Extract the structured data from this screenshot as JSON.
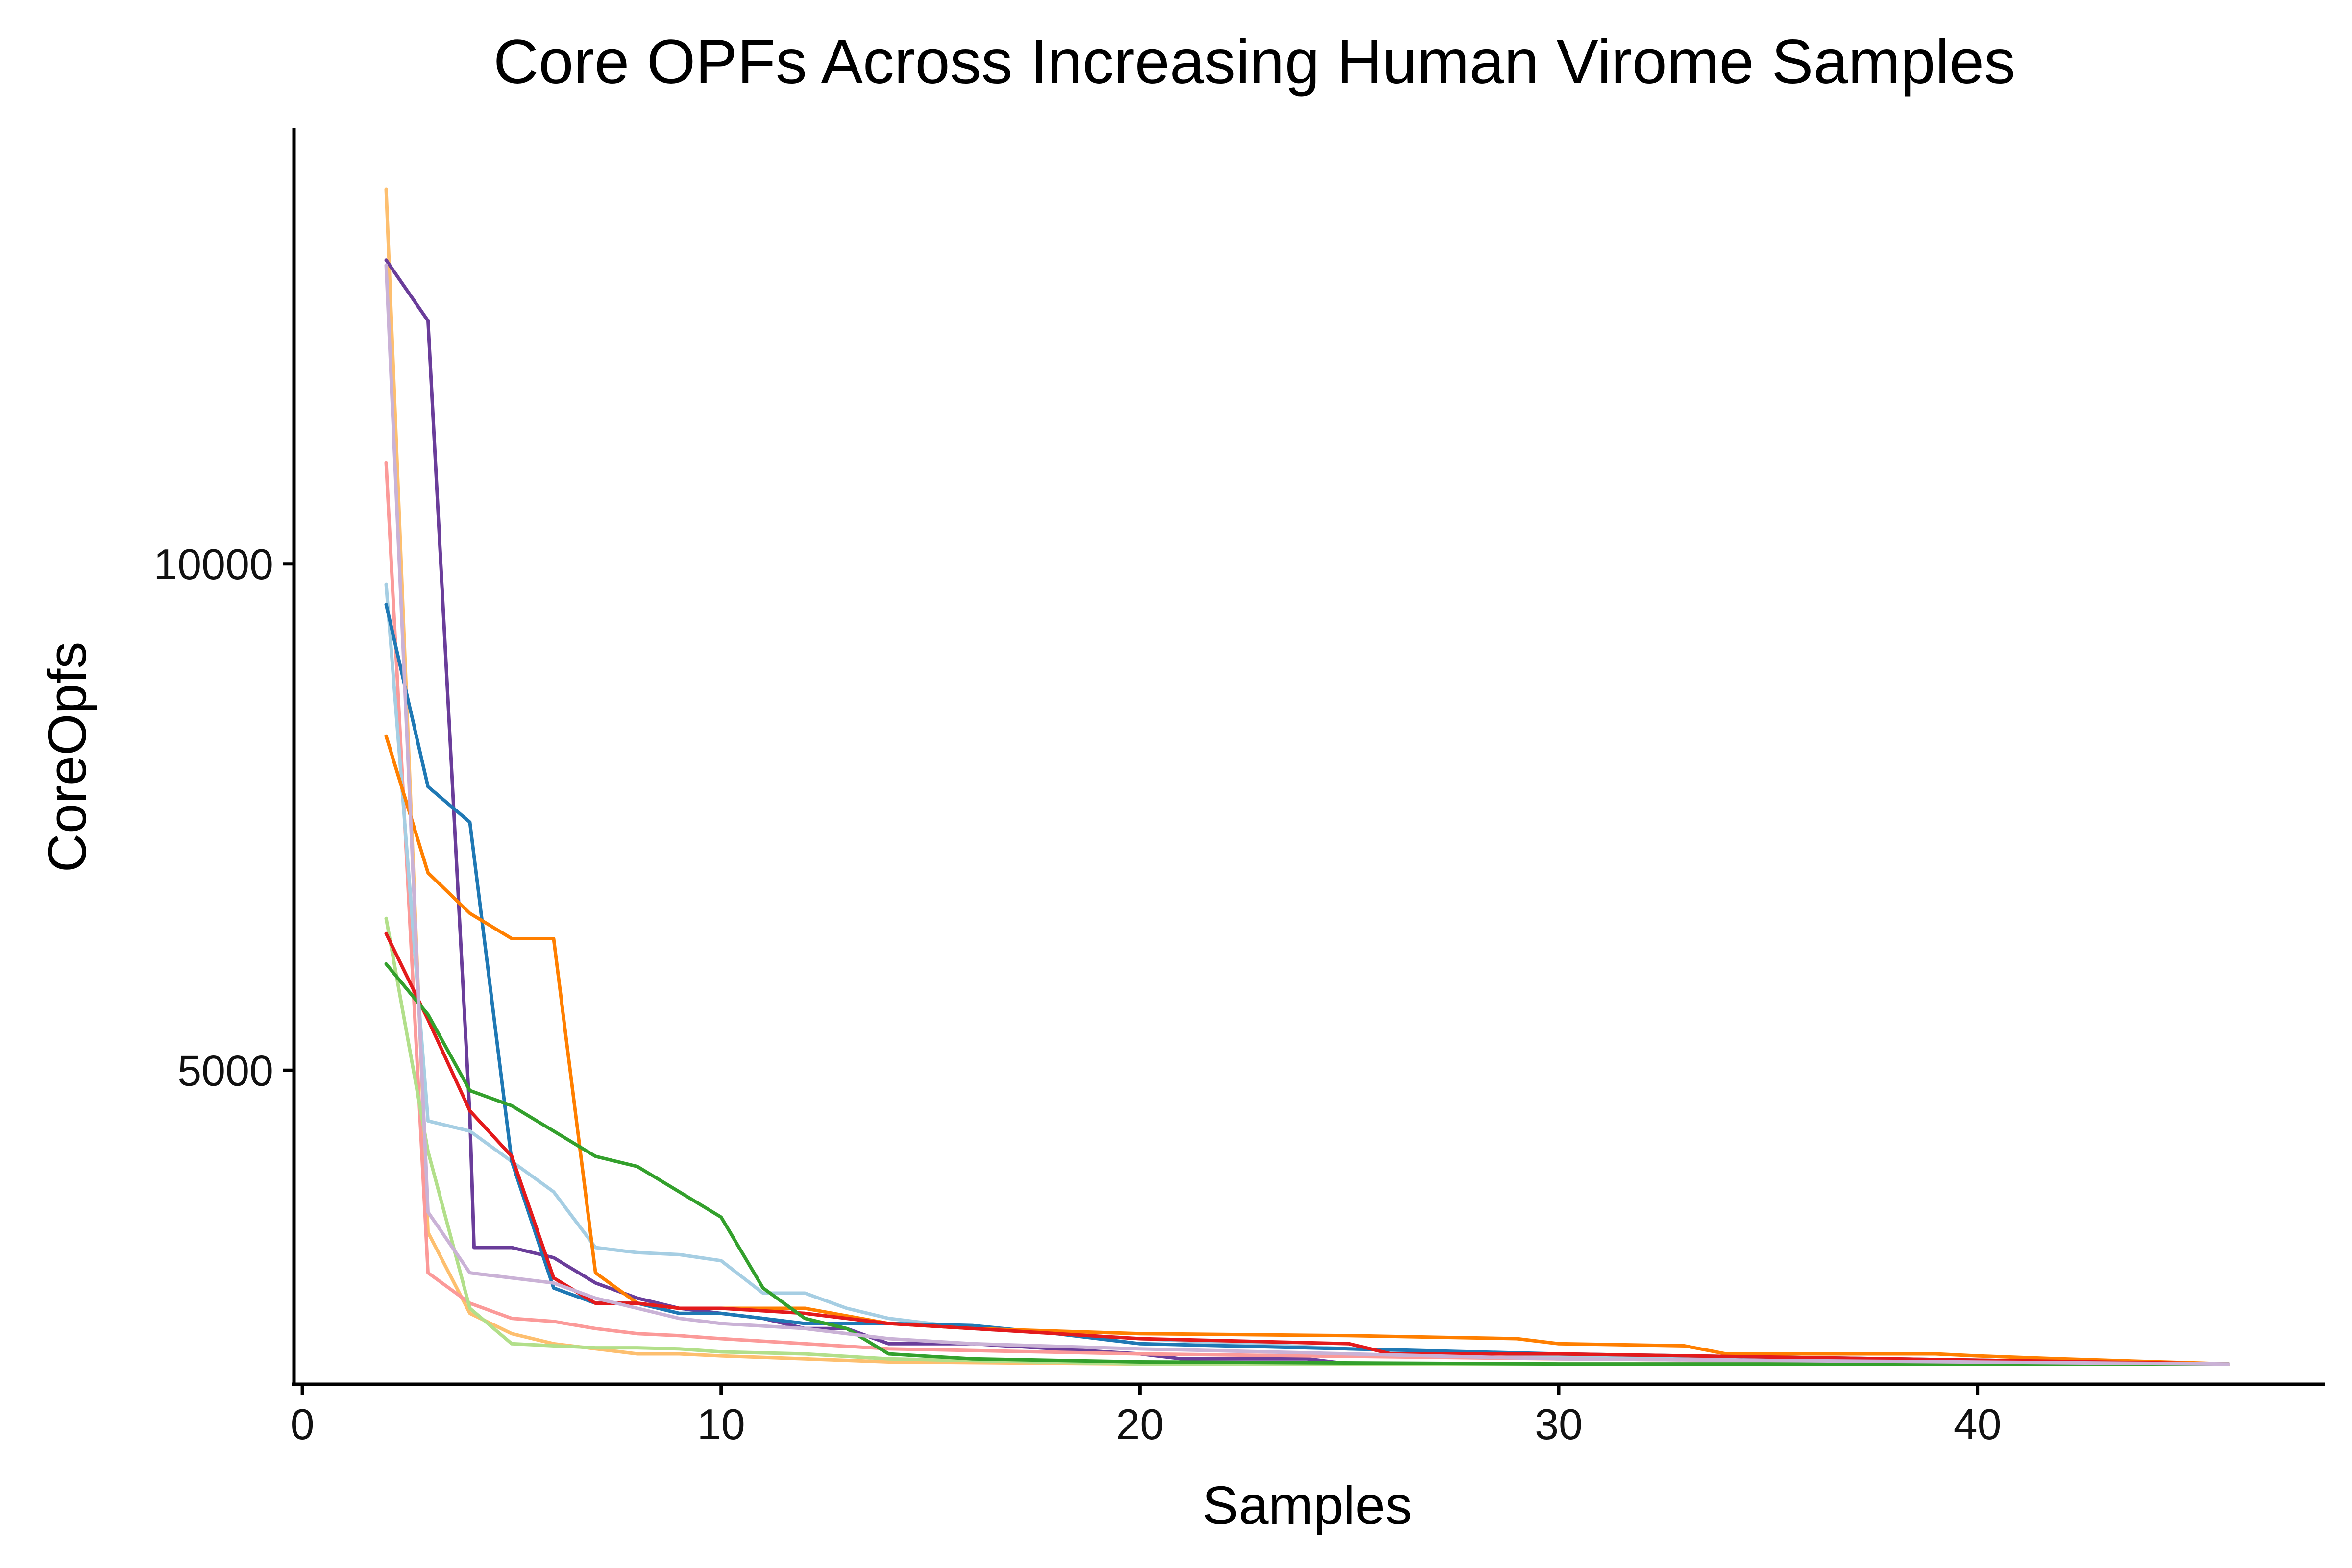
{
  "chart_data": {
    "type": "line",
    "title": "Core OPFs Across Increasing Human Virome Samples",
    "xlabel": "Samples",
    "ylabel": "CoreOpfs",
    "xlim": [
      -0.2,
      48.3
    ],
    "ylim": [
      1900,
      14300
    ],
    "xticks": [
      0,
      10,
      20,
      30,
      40
    ],
    "yticks": [
      5000,
      10000
    ],
    "grid": false,
    "legend": "none",
    "series": [
      {
        "color": "#fdbf6f",
        "points": [
          [
            2,
            13700
          ],
          [
            3,
            3400
          ],
          [
            4,
            2600
          ],
          [
            5,
            2400
          ],
          [
            6,
            2300
          ],
          [
            7,
            2250
          ],
          [
            8,
            2200
          ],
          [
            9,
            2200
          ],
          [
            10,
            2180
          ],
          [
            12,
            2150
          ],
          [
            14,
            2120
          ],
          [
            20,
            2100
          ],
          [
            30,
            2100
          ],
          [
            46,
            2100
          ]
        ]
      },
      {
        "color": "#6a3d9a",
        "points": [
          [
            2,
            13000
          ],
          [
            3,
            12400
          ],
          [
            4,
            4550
          ],
          [
            4.1,
            3250
          ],
          [
            5,
            3250
          ],
          [
            6,
            3150
          ],
          [
            7,
            2900
          ],
          [
            8,
            2750
          ],
          [
            9,
            2650
          ],
          [
            10,
            2600
          ],
          [
            11,
            2550
          ],
          [
            12,
            2450
          ],
          [
            13,
            2450
          ],
          [
            14,
            2300
          ],
          [
            16,
            2300
          ],
          [
            18,
            2250
          ],
          [
            20,
            2200
          ],
          [
            21,
            2150
          ],
          [
            24,
            2150
          ],
          [
            25,
            2100
          ],
          [
            46,
            2100
          ]
        ]
      },
      {
        "color": "#fb9a99",
        "points": [
          [
            2,
            11000
          ],
          [
            3,
            3000
          ],
          [
            4,
            2700
          ],
          [
            5,
            2550
          ],
          [
            6,
            2520
          ],
          [
            7,
            2450
          ],
          [
            8,
            2400
          ],
          [
            9,
            2380
          ],
          [
            10,
            2350
          ],
          [
            12,
            2300
          ],
          [
            14,
            2250
          ],
          [
            20,
            2200
          ],
          [
            30,
            2150
          ],
          [
            46,
            2100
          ]
        ]
      },
      {
        "color": "#a6cee3",
        "points": [
          [
            2,
            9800
          ],
          [
            3,
            4500
          ],
          [
            4,
            4400
          ],
          [
            5,
            4100
          ],
          [
            6,
            3800
          ],
          [
            7,
            3250
          ],
          [
            8,
            3200
          ],
          [
            9,
            3180
          ],
          [
            10,
            3120
          ],
          [
            11,
            2800
          ],
          [
            12,
            2800
          ],
          [
            13,
            2650
          ],
          [
            14,
            2550
          ],
          [
            16,
            2450
          ],
          [
            20,
            2350
          ],
          [
            25,
            2250
          ],
          [
            30,
            2180
          ],
          [
            46,
            2100
          ]
        ]
      },
      {
        "color": "#1f78b4",
        "points": [
          [
            2,
            9600
          ],
          [
            3,
            7800
          ],
          [
            4,
            7450
          ],
          [
            5,
            4100
          ],
          [
            6,
            2850
          ],
          [
            7,
            2700
          ],
          [
            8,
            2700
          ],
          [
            9,
            2600
          ],
          [
            10,
            2600
          ],
          [
            11,
            2550
          ],
          [
            12,
            2500
          ],
          [
            14,
            2500
          ],
          [
            16,
            2480
          ],
          [
            18,
            2400
          ],
          [
            20,
            2300
          ],
          [
            25,
            2250
          ],
          [
            30,
            2200
          ],
          [
            46,
            2100
          ]
        ]
      },
      {
        "color": "#ff7f00",
        "points": [
          [
            2,
            8300
          ],
          [
            3,
            6950
          ],
          [
            4,
            6550
          ],
          [
            5,
            6300
          ],
          [
            6,
            6300
          ],
          [
            7,
            3000
          ],
          [
            8,
            2700
          ],
          [
            9,
            2650
          ],
          [
            10,
            2650
          ],
          [
            11,
            2650
          ],
          [
            12,
            2650
          ],
          [
            14,
            2500
          ],
          [
            16,
            2450
          ],
          [
            20,
            2400
          ],
          [
            25,
            2380
          ],
          [
            29,
            2350
          ],
          [
            30,
            2300
          ],
          [
            33,
            2280
          ],
          [
            34,
            2200
          ],
          [
            39,
            2200
          ],
          [
            40,
            2180
          ],
          [
            42,
            2150
          ],
          [
            46,
            2100
          ]
        ]
      },
      {
        "color": "#b2df8a",
        "points": [
          [
            2,
            6500
          ],
          [
            3,
            4200
          ],
          [
            4,
            2650
          ],
          [
            5,
            2300
          ],
          [
            6,
            2280
          ],
          [
            7,
            2260
          ],
          [
            8,
            2260
          ],
          [
            9,
            2250
          ],
          [
            10,
            2220
          ],
          [
            12,
            2200
          ],
          [
            14,
            2150
          ],
          [
            20,
            2100
          ],
          [
            46,
            2100
          ]
        ]
      },
      {
        "color": "#e31a1c",
        "points": [
          [
            2,
            6350
          ],
          [
            3,
            5500
          ],
          [
            4,
            4600
          ],
          [
            5,
            4150
          ],
          [
            6,
            2950
          ],
          [
            7,
            2700
          ],
          [
            8,
            2700
          ],
          [
            9,
            2650
          ],
          [
            10,
            2650
          ],
          [
            12,
            2600
          ],
          [
            14,
            2500
          ],
          [
            16,
            2450
          ],
          [
            20,
            2350
          ],
          [
            25,
            2300
          ],
          [
            26,
            2200
          ],
          [
            30,
            2200
          ],
          [
            46,
            2100
          ]
        ]
      },
      {
        "color": "#33a02c",
        "points": [
          [
            2,
            6050
          ],
          [
            3,
            5550
          ],
          [
            4,
            4800
          ],
          [
            5,
            4650
          ],
          [
            6,
            4400
          ],
          [
            7,
            4150
          ],
          [
            8,
            4050
          ],
          [
            9,
            3800
          ],
          [
            10,
            3550
          ],
          [
            11,
            2850
          ],
          [
            12,
            2550
          ],
          [
            13,
            2450
          ],
          [
            14,
            2200
          ],
          [
            16,
            2150
          ],
          [
            20,
            2120
          ],
          [
            30,
            2100
          ],
          [
            46,
            2100
          ]
        ]
      },
      {
        "color": "#cab2d6",
        "points": [
          [
            2,
            12950
          ],
          [
            3,
            3600
          ],
          [
            4,
            3000
          ],
          [
            5,
            2950
          ],
          [
            6,
            2900
          ],
          [
            7,
            2750
          ],
          [
            8,
            2650
          ],
          [
            9,
            2550
          ],
          [
            10,
            2500
          ],
          [
            12,
            2450
          ],
          [
            14,
            2350
          ],
          [
            16,
            2300
          ],
          [
            20,
            2250
          ],
          [
            25,
            2200
          ],
          [
            30,
            2150
          ],
          [
            46,
            2100
          ]
        ]
      }
    ]
  }
}
